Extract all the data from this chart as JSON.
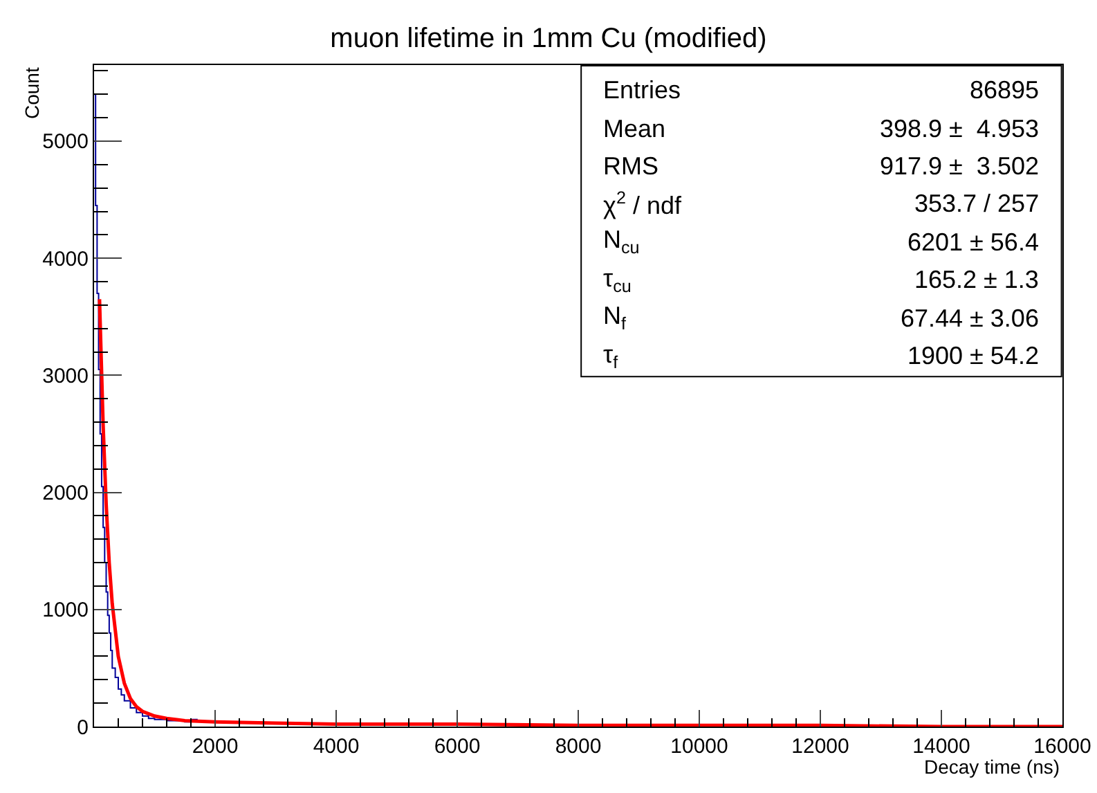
{
  "chart_data": {
    "type": "line",
    "title": "muon lifetime in 1mm Cu (modified)",
    "xlabel": "Decay time (ns)",
    "ylabel": "Count",
    "xlim": [
      0,
      16000
    ],
    "xticks": [
      2000,
      4000,
      6000,
      8000,
      10000,
      12000,
      14000,
      16000
    ],
    "ylim": [
      0,
      5650
    ],
    "yticks": [
      0,
      1000,
      2000,
      3000,
      4000,
      5000
    ],
    "grid": false,
    "marker": "none",
    "series": [
      {
        "type": "step",
        "color": "#000099",
        "x": [
          0,
          25,
          50,
          75,
          100,
          125,
          150,
          175,
          200,
          225,
          250,
          275,
          300,
          350,
          400,
          450,
          500,
          600,
          700,
          800,
          900,
          1000,
          1200,
          1500,
          1600,
          1700
        ],
        "values": [
          5400,
          4450,
          3700,
          3050,
          2500,
          2050,
          1700,
          1400,
          1150,
          950,
          800,
          650,
          500,
          420,
          320,
          270,
          220,
          160,
          120,
          90,
          70,
          60,
          50,
          40,
          60,
          40
        ]
      },
      {
        "color": "#ff0000",
        "x": [
          90,
          150,
          200,
          250,
          300,
          400,
          500,
          600,
          700,
          800,
          1000,
          1200,
          1500,
          2000,
          3000,
          4000,
          6000,
          8000,
          10000,
          12000,
          14000,
          16000
        ],
        "values": [
          3650,
          2570,
          1900,
          1400,
          1050,
          600,
          370,
          240,
          170,
          130,
          90,
          70,
          50,
          40,
          30,
          20,
          20,
          10,
          10,
          10,
          0,
          0
        ]
      }
    ],
    "annotations": [
      "Entries",
      "86895",
      "Mean",
      "398.9 ±  4.953",
      "RMS",
      "917.9 ±  3.502",
      "χ$^{2}$ / ndf",
      "353.7 / 257",
      "N$_{cu}$",
      "6201 ± 56.4",
      "τ$_{cu}$",
      "165.2 ± 1.3",
      "N$_{f}$",
      "67.44 ± 3.06",
      "τ$_{f}$",
      "1900 ± 54.2"
    ]
  }
}
